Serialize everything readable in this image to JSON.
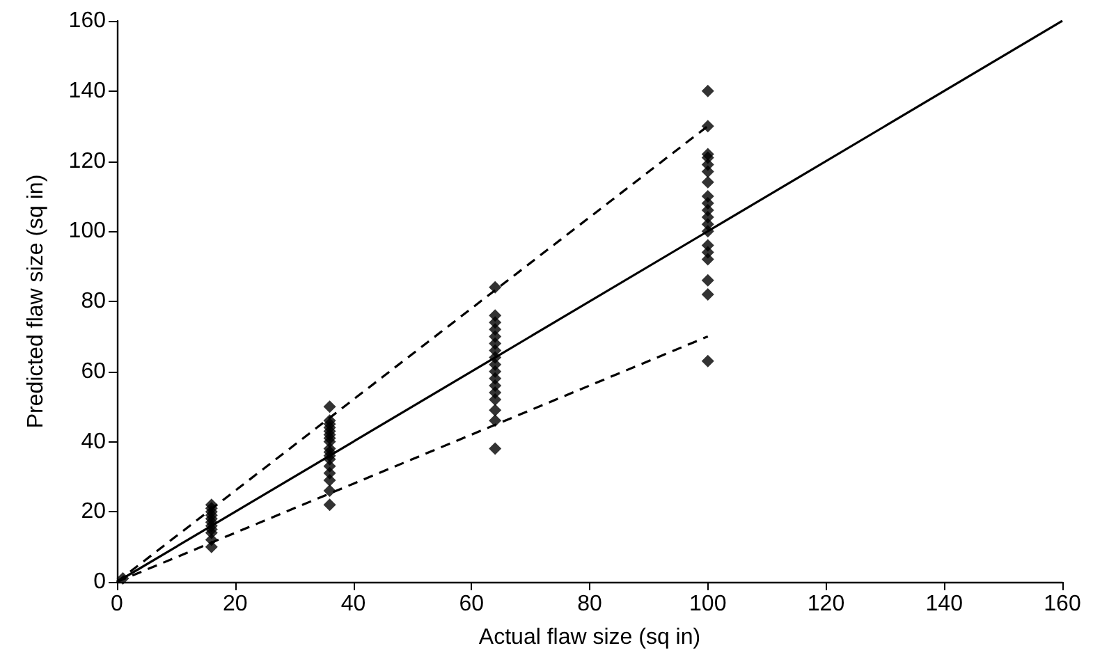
{
  "chart_data": {
    "type": "scatter",
    "xlabel": "Actual flaw size (sq in)",
    "ylabel": "Predicted flaw size (sq in)",
    "xlim": [
      0,
      160
    ],
    "ylim": [
      0,
      160
    ],
    "xticks": [
      0,
      20,
      40,
      60,
      80,
      100,
      120,
      140,
      160
    ],
    "yticks": [
      0,
      20,
      40,
      60,
      80,
      100,
      120,
      140,
      160
    ],
    "grid": false,
    "marker": "diamond",
    "series": [
      {
        "color": "#000000",
        "x": [
          1,
          16,
          16,
          16,
          16,
          16,
          16,
          16,
          16,
          16,
          16,
          16,
          36,
          36,
          36,
          36,
          36,
          36,
          36,
          36,
          36,
          36,
          36,
          36,
          36,
          36,
          36,
          36,
          36,
          64,
          64,
          64,
          64,
          64,
          64,
          64,
          64,
          64,
          64,
          64,
          64,
          64,
          64,
          64,
          64,
          64,
          100,
          100,
          100,
          100,
          100,
          100,
          100,
          100,
          100,
          100,
          100,
          100,
          100,
          100,
          100,
          100,
          100,
          100,
          100
        ],
        "values": [
          1,
          10,
          12,
          14,
          15,
          16,
          17,
          18,
          19,
          20,
          21,
          22,
          22,
          26,
          29,
          31,
          33,
          35,
          36,
          37,
          38,
          40,
          41,
          42,
          43,
          44,
          45,
          46,
          50,
          38,
          46,
          49,
          52,
          54,
          56,
          58,
          60,
          62,
          64,
          66,
          68,
          70,
          72,
          74,
          76,
          84,
          63,
          82,
          86,
          92,
          94,
          96,
          100,
          102,
          104,
          106,
          108,
          110,
          114,
          117,
          119,
          121,
          122,
          130,
          140
        ]
      },
      {
        "type": "line",
        "color": "#000000",
        "marker": "none",
        "line_style": "solid",
        "x": [
          0,
          160
        ],
        "values": [
          0,
          160
        ]
      },
      {
        "type": "line",
        "color": "#000000",
        "marker": "none",
        "line_style": "dashed",
        "x": [
          0,
          100
        ],
        "values": [
          0,
          130
        ]
      },
      {
        "type": "line",
        "color": "#000000",
        "marker": "none",
        "line_style": "dashed",
        "x": [
          0,
          100
        ],
        "values": [
          0,
          70
        ]
      }
    ]
  }
}
